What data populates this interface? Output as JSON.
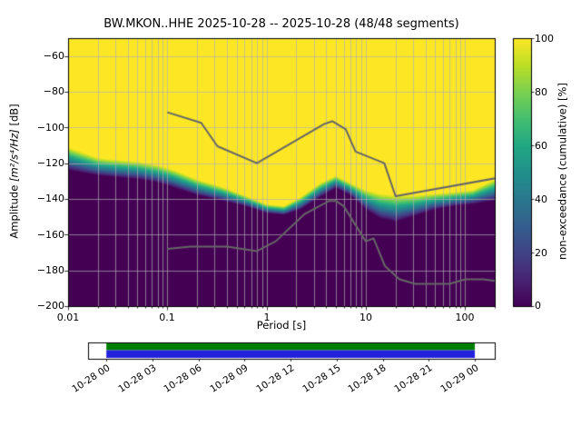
{
  "chart_data": {
    "type": "heatmap",
    "title": "BW.MKON..HHE   2025-10-28 -- 2025-10-28  (48/48 segments)",
    "xlabel": "Period [s]",
    "ylabel": {
      "prefix": "Amplitude ",
      "math": "[m²/s⁴/Hz]",
      "suffix": " [dB]"
    },
    "x_axis": {
      "scale": "log",
      "min": 0.01,
      "max": 200,
      "ticks": [
        0.01,
        0.1,
        1,
        10,
        100
      ],
      "tick_labels": [
        "0.01",
        "0.1",
        "1",
        "10",
        "100"
      ]
    },
    "y_axis": {
      "min": -200,
      "max": -50,
      "ticks": [
        -60,
        -80,
        -100,
        -120,
        -140,
        -160,
        -180,
        -200
      ],
      "tick_labels": [
        "−60",
        "−80",
        "−100",
        "−120",
        "−140",
        "−160",
        "−180",
        "−200"
      ]
    },
    "grid": true,
    "colorbar": {
      "label": "non-exceedance (cumulative) [%]",
      "min": 0,
      "max": 100,
      "ticks": [
        0,
        20,
        40,
        60,
        80,
        100
      ],
      "tick_labels": [
        "0",
        "20",
        "40",
        "60",
        "80",
        "100"
      ]
    },
    "cumulative_boundary": {
      "periods_s": [
        0.01,
        0.02,
        0.03,
        0.05,
        0.08,
        0.12,
        0.2,
        0.35,
        0.6,
        1.0,
        1.5,
        2.2,
        3.5,
        5.0,
        7.0,
        10,
        14,
        20,
        30,
        50,
        80,
        120,
        200
      ],
      "upper_db_100pct": [
        -111,
        -117,
        -118,
        -119,
        -121,
        -124,
        -129,
        -133,
        -138,
        -143,
        -144,
        -139,
        -131,
        -127,
        -131,
        -135,
        -137,
        -138,
        -138,
        -137,
        -136,
        -135,
        -129
      ],
      "lower_db_0pct": [
        -124,
        -127,
        -128,
        -129,
        -131,
        -134,
        -138,
        -141,
        -144,
        -148,
        -149,
        -146,
        -139,
        -134,
        -138,
        -146,
        -151,
        -153,
        -150,
        -146,
        -144,
        -143,
        -141
      ]
    },
    "noise_models": {
      "nhnm": {
        "periods_s": [
          0.1,
          0.22,
          0.32,
          0.8,
          3.8,
          4.6,
          6.3,
          7.9,
          15.4,
          20.0,
          354.8
        ],
        "db": [
          -91.5,
          -97.4,
          -110.5,
          -120.0,
          -98.1,
          -96.5,
          -101.0,
          -113.5,
          -120.0,
          -138.5,
          -126.0
        ]
      },
      "nlnm": {
        "periods_s": [
          0.1,
          0.17,
          0.4,
          0.8,
          1.24,
          2.4,
          4.3,
          5.0,
          6.0,
          10.0,
          12.0,
          15.6,
          21.9,
          31.6,
          45.0,
          70.0,
          101.0,
          154.0,
          200.0
        ],
        "db": [
          -168.0,
          -166.7,
          -166.7,
          -169.2,
          -163.7,
          -148.6,
          -141.1,
          -141.1,
          -144.0,
          -163.7,
          -162.1,
          -177.5,
          -185.0,
          -187.5,
          -187.5,
          -187.5,
          -185.0,
          -185.0,
          -185.9
        ]
      }
    },
    "timeline": {
      "tick_labels": [
        "10-28 00",
        "10-28 03",
        "10-28 06",
        "10-28 09",
        "10-28 12",
        "10-28 15",
        "10-28 18",
        "10-28 21",
        "10-29 00"
      ],
      "fill_start_frac": 0.045,
      "fill_end_frac": 0.951
    },
    "colors": {
      "viridis_stops": [
        "#440154",
        "#482475",
        "#414487",
        "#355f8d",
        "#2a788e",
        "#21918c",
        "#22a884",
        "#44bf70",
        "#7ad151",
        "#bddf26",
        "#fde725"
      ],
      "grid_line": "#b0b0b0",
      "noise_model_line": "#666666",
      "axis_line": "#000000",
      "timeline_top_fill": "#008000",
      "timeline_bottom_fill": "#2222dd",
      "background_high": "#fde725",
      "background_low": "#440154"
    }
  }
}
